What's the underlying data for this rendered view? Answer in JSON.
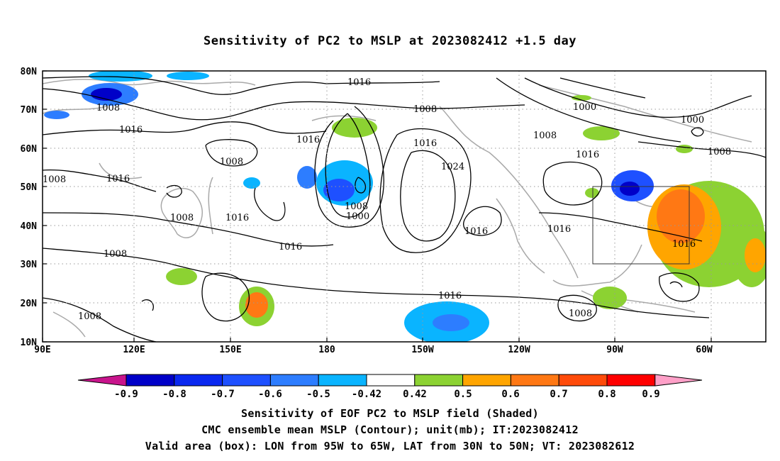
{
  "title": "Sensitivity of PC2 to MSLP at 2023082412 +1.5 day",
  "lat_labels": [
    "80N",
    "70N",
    "60N",
    "50N",
    "40N",
    "30N",
    "20N",
    "10N"
  ],
  "lon_labels": [
    "90E",
    "120E",
    "150E",
    "180",
    "150W",
    "120W",
    "90W",
    "60W"
  ],
  "contour_labels": [
    "1016",
    "1008",
    "1016",
    "1000",
    "1000",
    "1008",
    "1016",
    "1008",
    "1008",
    "1016",
    "1008",
    "1016",
    "1024",
    "1008",
    "1008",
    "1016",
    "1016",
    "1000",
    "1016",
    "1008",
    "1016",
    "1016",
    "1016",
    "1008",
    "1008",
    "1008",
    "1016"
  ],
  "colorbar": {
    "tick_labels": [
      "-0.9",
      "-0.8",
      "-0.7",
      "-0.6",
      "-0.5",
      "-0.42",
      "0.42",
      "0.5",
      "0.6",
      "0.7",
      "0.8",
      "0.9"
    ],
    "colors": [
      "#0000c8",
      "#0a28f0",
      "#1e50ff",
      "#2d7dff",
      "#0ab4ff",
      "#ffffff",
      "#8cd232",
      "#ffa500",
      "#ff7814",
      "#ff4b0a",
      "#ff0000"
    ],
    "low_end_color": "#c8148c",
    "high_end_color": "#ffa0c8"
  },
  "valid_box": {
    "lon_from": "95W",
    "lon_to": "65W",
    "lat_from": "30N",
    "lat_to": "50N"
  },
  "captions": [
    "Sensitivity of EOF PC2 to MSLP field (Shaded)",
    "CMC ensemble mean MSLP (Contour); unit(mb); IT:2023082412",
    "Valid area (box): LON from 95W to 65W, LAT from 30N to 50N; VT: 2023082612"
  ]
}
